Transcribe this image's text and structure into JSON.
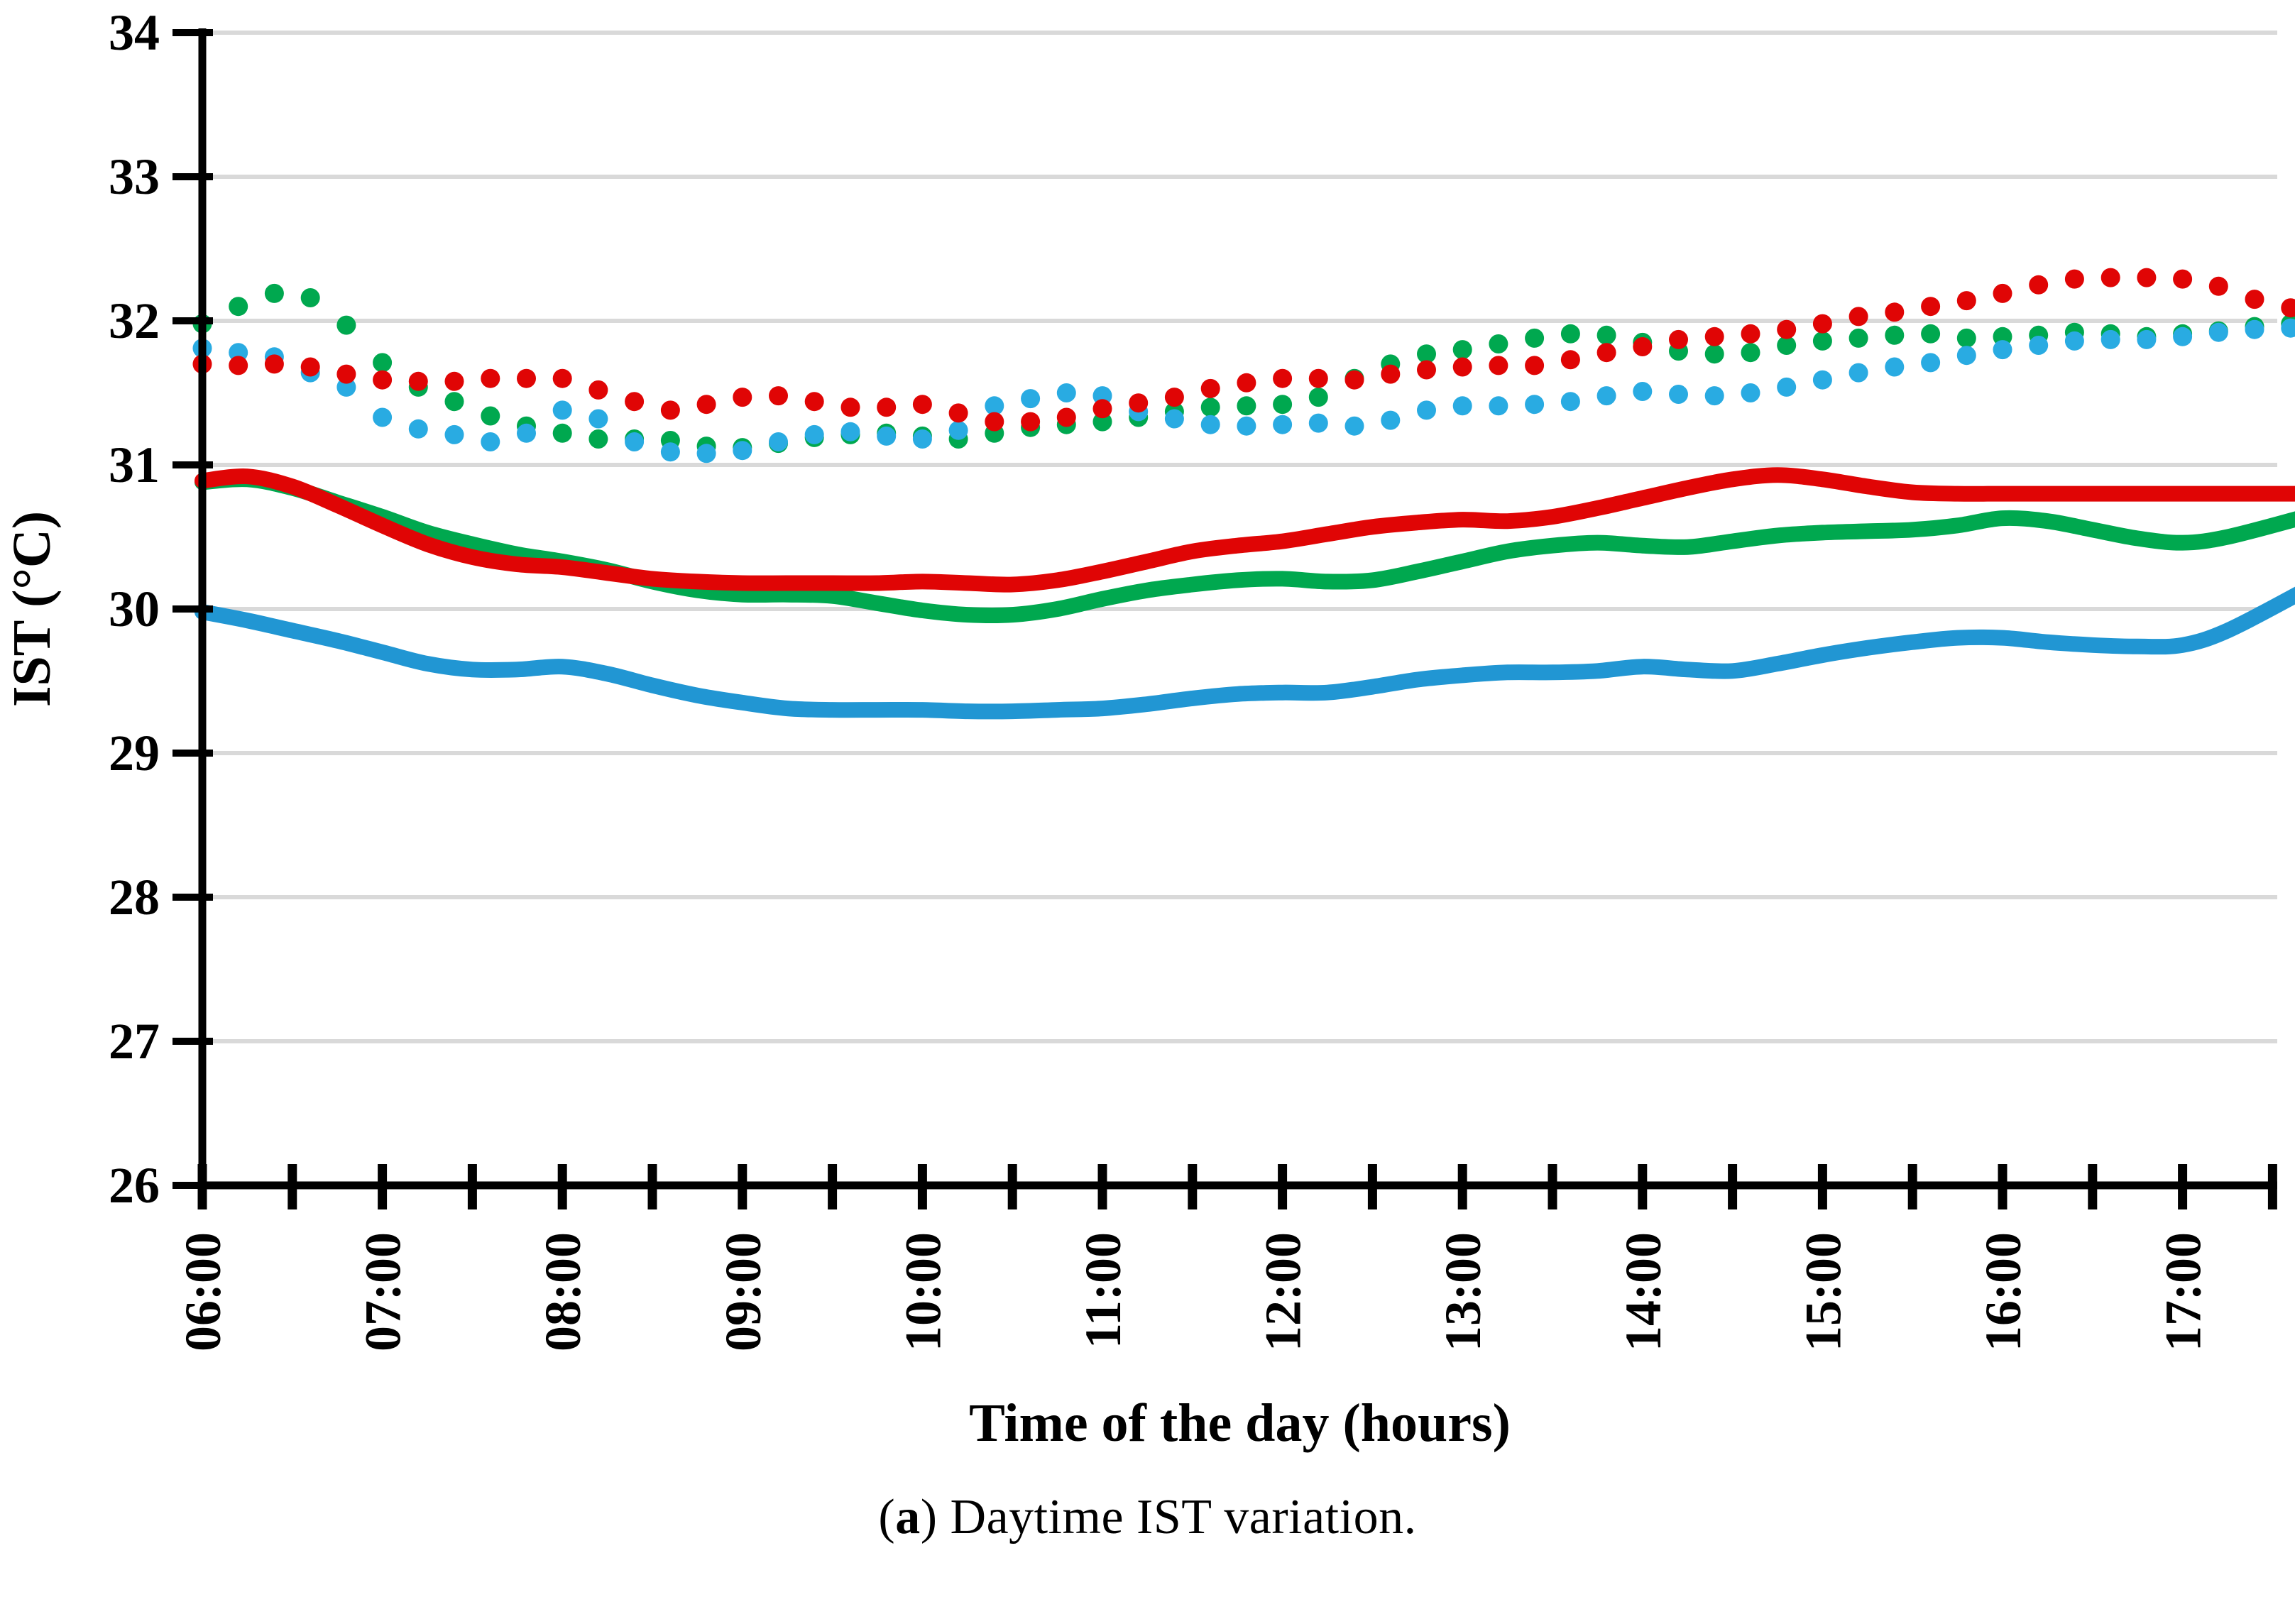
{
  "caption": {
    "open": "(",
    "bold": "a",
    "close": ")",
    "rest": " Daytime IST variation."
  },
  "colors": {
    "red": "#e00505",
    "green": "#00a84f",
    "blue_solid": "#2196d3",
    "blue_dotted": "#29abe2",
    "gridline": "#d9d9d9",
    "axis": "#000000"
  },
  "chart_data": {
    "type": "line",
    "title": "",
    "xlabel": "Time of the day (hours)",
    "ylabel": "IST (°C)",
    "xlim_hours": [
      6.0,
      17.75
    ],
    "ylim": [
      26,
      34
    ],
    "grid": "horizontal-only",
    "legend": "none",
    "y_axis": {
      "ticks": [
        26,
        27,
        28,
        29,
        30,
        31,
        32,
        33,
        34
      ]
    },
    "x_axis": {
      "tick_start_hour": 6.0,
      "tick_end_hour": 17.5,
      "tick_step_hours": 0.5,
      "label_hours": [
        6,
        7,
        8,
        9,
        10,
        11,
        12,
        13,
        14,
        15,
        16,
        17
      ],
      "labels": [
        "06:00",
        "07:00",
        "08:00",
        "09:00",
        "10:00",
        "11:00",
        "12:00",
        "13:00",
        "14:00",
        "15:00",
        "16:00",
        "17:00"
      ]
    },
    "series": [
      {
        "name": "green-dotted",
        "style": "dotted",
        "color": "#00a84f",
        "x": [
          6.0,
          6.2,
          6.4,
          6.6,
          6.8,
          7.0,
          7.2,
          7.4,
          7.6,
          7.8,
          8.0,
          8.2,
          8.4,
          8.6,
          8.8,
          9.0,
          9.2,
          9.4,
          9.6,
          9.8,
          10.0,
          10.2,
          10.4,
          10.6,
          10.8,
          11.0,
          11.2,
          11.4,
          11.6,
          11.8,
          12.0,
          12.2,
          12.4,
          12.6,
          12.8,
          13.0,
          13.2,
          13.4,
          13.6,
          13.8,
          14.0,
          14.2,
          14.4,
          14.6,
          14.8,
          15.0,
          15.2,
          15.4,
          15.6,
          15.8,
          16.0,
          16.2,
          16.4,
          16.6,
          16.8,
          17.0,
          17.2,
          17.4,
          17.6
        ],
        "y": [
          31.98,
          32.1,
          32.19,
          32.16,
          31.97,
          31.71,
          31.54,
          31.44,
          31.34,
          31.27,
          31.22,
          31.18,
          31.18,
          31.17,
          31.13,
          31.12,
          31.15,
          31.19,
          31.21,
          31.22,
          31.2,
          31.18,
          31.22,
          31.26,
          31.28,
          31.3,
          31.33,
          31.37,
          31.4,
          31.41,
          31.42,
          31.47,
          31.6,
          31.7,
          31.77,
          31.8,
          31.84,
          31.88,
          31.91,
          31.9,
          31.85,
          31.79,
          31.77,
          31.78,
          31.83,
          31.86,
          31.88,
          31.9,
          31.91,
          31.88,
          31.89,
          31.9,
          31.92,
          31.91,
          31.89,
          31.91,
          31.93,
          31.96,
          31.98
        ]
      },
      {
        "name": "blue-dotted",
        "style": "dotted",
        "color": "#29abe2",
        "x": [
          6.0,
          6.2,
          6.4,
          6.6,
          6.8,
          7.0,
          7.2,
          7.4,
          7.6,
          7.8,
          8.0,
          8.2,
          8.4,
          8.6,
          8.8,
          9.0,
          9.2,
          9.4,
          9.6,
          9.8,
          10.0,
          10.2,
          10.4,
          10.6,
          10.8,
          11.0,
          11.2,
          11.4,
          11.6,
          11.8,
          12.0,
          12.2,
          12.4,
          12.6,
          12.8,
          13.0,
          13.2,
          13.4,
          13.6,
          13.8,
          14.0,
          14.2,
          14.4,
          14.6,
          14.8,
          15.0,
          15.2,
          15.4,
          15.6,
          15.8,
          16.0,
          16.2,
          16.4,
          16.6,
          16.8,
          17.0,
          17.2,
          17.4,
          17.6
        ],
        "y": [
          31.81,
          31.78,
          31.75,
          31.64,
          31.54,
          31.33,
          31.25,
          31.21,
          31.16,
          31.22,
          31.38,
          31.32,
          31.16,
          31.09,
          31.08,
          31.1,
          31.16,
          31.21,
          31.23,
          31.2,
          31.18,
          31.24,
          31.41,
          31.46,
          31.5,
          31.48,
          31.37,
          31.32,
          31.28,
          31.27,
          31.28,
          31.29,
          31.27,
          31.31,
          31.38,
          31.41,
          31.41,
          31.42,
          31.44,
          31.48,
          31.51,
          31.49,
          31.48,
          31.5,
          31.54,
          31.59,
          31.64,
          31.68,
          31.71,
          31.76,
          31.8,
          31.83,
          31.86,
          31.87,
          31.87,
          31.89,
          31.92,
          31.94,
          31.95
        ]
      },
      {
        "name": "red-dotted",
        "style": "dotted",
        "color": "#e00505",
        "x": [
          6.0,
          6.2,
          6.4,
          6.6,
          6.8,
          7.0,
          7.2,
          7.4,
          7.6,
          7.8,
          8.0,
          8.2,
          8.4,
          8.6,
          8.8,
          9.0,
          9.2,
          9.4,
          9.6,
          9.8,
          10.0,
          10.2,
          10.4,
          10.6,
          10.8,
          11.0,
          11.2,
          11.4,
          11.6,
          11.8,
          12.0,
          12.2,
          12.4,
          12.6,
          12.8,
          13.0,
          13.2,
          13.4,
          13.6,
          13.8,
          14.0,
          14.2,
          14.4,
          14.6,
          14.8,
          15.0,
          15.2,
          15.4,
          15.6,
          15.8,
          16.0,
          16.2,
          16.4,
          16.6,
          16.8,
          17.0,
          17.2,
          17.4,
          17.6
        ],
        "y": [
          31.7,
          31.69,
          31.7,
          31.68,
          31.63,
          31.59,
          31.58,
          31.58,
          31.6,
          31.6,
          31.6,
          31.52,
          31.44,
          31.38,
          31.42,
          31.47,
          31.48,
          31.44,
          31.4,
          31.4,
          31.42,
          31.36,
          31.3,
          31.3,
          31.33,
          31.39,
          31.43,
          31.47,
          31.53,
          31.57,
          31.6,
          31.6,
          31.59,
          31.63,
          31.66,
          31.68,
          31.69,
          31.69,
          31.73,
          31.78,
          31.82,
          31.87,
          31.89,
          31.91,
          31.94,
          31.98,
          32.03,
          32.06,
          32.1,
          32.14,
          32.19,
          32.25,
          32.29,
          32.3,
          32.3,
          32.29,
          32.24,
          32.15,
          32.09
        ]
      },
      {
        "name": "green-solid",
        "style": "solid",
        "color": "#00a84f",
        "x": [
          6.0,
          6.25,
          6.5,
          6.75,
          7.0,
          7.25,
          7.5,
          7.75,
          8.0,
          8.25,
          8.5,
          8.75,
          9.0,
          9.25,
          9.5,
          9.75,
          10.0,
          10.25,
          10.5,
          10.75,
          11.0,
          11.25,
          11.5,
          11.75,
          12.0,
          12.25,
          12.5,
          12.75,
          13.0,
          13.25,
          13.5,
          13.75,
          14.0,
          14.25,
          14.5,
          14.75,
          15.0,
          15.25,
          15.5,
          15.75,
          16.0,
          16.25,
          16.5,
          16.75,
          17.0,
          17.25,
          17.65
        ],
        "y": [
          30.88,
          30.9,
          30.84,
          30.74,
          30.64,
          30.53,
          30.45,
          30.38,
          30.33,
          30.27,
          30.19,
          30.13,
          30.1,
          30.1,
          30.09,
          30.04,
          29.99,
          29.96,
          29.96,
          30.0,
          30.07,
          30.13,
          30.17,
          30.2,
          30.21,
          30.19,
          30.2,
          30.26,
          30.33,
          30.4,
          30.44,
          30.46,
          30.44,
          30.43,
          30.47,
          30.51,
          30.53,
          30.54,
          30.55,
          30.58,
          30.63,
          30.61,
          30.55,
          30.49,
          30.46,
          30.5,
          30.63
        ]
      },
      {
        "name": "blue-solid",
        "style": "solid",
        "color": "#2196d3",
        "x": [
          6.0,
          6.25,
          6.5,
          6.75,
          7.0,
          7.25,
          7.5,
          7.75,
          8.0,
          8.25,
          8.5,
          8.75,
          9.0,
          9.25,
          9.5,
          9.75,
          10.0,
          10.25,
          10.5,
          10.75,
          11.0,
          11.25,
          11.5,
          11.75,
          12.0,
          12.25,
          12.5,
          12.75,
          13.0,
          13.25,
          13.5,
          13.75,
          14.0,
          14.25,
          14.5,
          14.75,
          15.0,
          15.25,
          15.5,
          15.75,
          16.0,
          16.25,
          16.5,
          16.75,
          17.0,
          17.25,
          17.65
        ],
        "y": [
          29.98,
          29.92,
          29.85,
          29.78,
          29.7,
          29.62,
          29.58,
          29.58,
          29.6,
          29.55,
          29.47,
          29.4,
          29.35,
          29.31,
          29.3,
          29.3,
          29.3,
          29.29,
          29.29,
          29.3,
          29.31,
          29.34,
          29.38,
          29.41,
          29.42,
          29.42,
          29.46,
          29.51,
          29.54,
          29.56,
          29.56,
          29.57,
          29.6,
          29.58,
          29.57,
          29.62,
          29.68,
          29.73,
          29.77,
          29.8,
          29.8,
          29.77,
          29.75,
          29.74,
          29.75,
          29.85,
          30.11
        ]
      },
      {
        "name": "red-solid",
        "style": "solid",
        "color": "#e00505",
        "x": [
          6.0,
          6.25,
          6.5,
          6.75,
          7.0,
          7.25,
          7.5,
          7.75,
          8.0,
          8.25,
          8.5,
          8.75,
          9.0,
          9.25,
          9.5,
          9.75,
          10.0,
          10.25,
          10.5,
          10.75,
          11.0,
          11.25,
          11.5,
          11.75,
          12.0,
          12.25,
          12.5,
          12.75,
          13.0,
          13.25,
          13.5,
          13.75,
          14.0,
          14.25,
          14.5,
          14.75,
          15.0,
          15.25,
          15.5,
          15.75,
          16.0,
          16.25,
          16.5,
          16.75,
          17.0,
          17.25,
          17.65
        ],
        "y": [
          30.89,
          30.92,
          30.85,
          30.72,
          30.58,
          30.45,
          30.36,
          30.31,
          30.29,
          30.25,
          30.21,
          30.19,
          30.18,
          30.18,
          30.18,
          30.18,
          30.19,
          30.18,
          30.17,
          30.2,
          30.26,
          30.33,
          30.4,
          30.44,
          30.47,
          30.52,
          30.57,
          30.6,
          30.62,
          30.61,
          30.64,
          30.7,
          30.77,
          30.84,
          30.9,
          30.93,
          30.9,
          30.85,
          30.81,
          30.8,
          30.8,
          30.8,
          30.8,
          30.8,
          30.8,
          30.8,
          30.8
        ]
      }
    ]
  }
}
